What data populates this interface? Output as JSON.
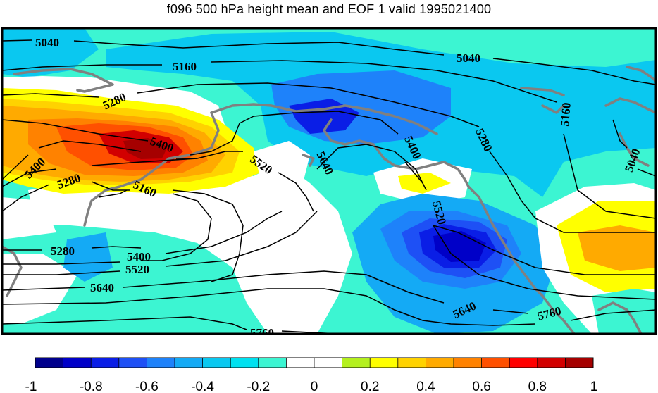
{
  "title": "f096 500 hPa height mean and EOF 1 valid 1995021400",
  "contour_labels": [
    "5040",
    "5160",
    "5280",
    "5400",
    "5520",
    "5640",
    "5760"
  ],
  "colorbar": {
    "ticks": [
      "-1",
      "-0.8",
      "-0.6",
      "-0.4",
      "-0.2",
      "0",
      "0.2",
      "0.4",
      "0.6",
      "0.8",
      "1"
    ],
    "colors": [
      "#00008c",
      "#0000c8",
      "#0a1ee6",
      "#1e50f5",
      "#1e82fa",
      "#14aaf5",
      "#0ac8f0",
      "#00e1f0",
      "#3cf5d2",
      "#ffffff",
      "#ffffff",
      "#b4f01e",
      "#ffff00",
      "#ffd200",
      "#ffaa00",
      "#ff8200",
      "#ff5000",
      "#ff0000",
      "#d20000",
      "#a50000"
    ]
  },
  "colors": {
    "coastline": "#808080",
    "contour": "#000000",
    "frame": "#000000"
  }
}
